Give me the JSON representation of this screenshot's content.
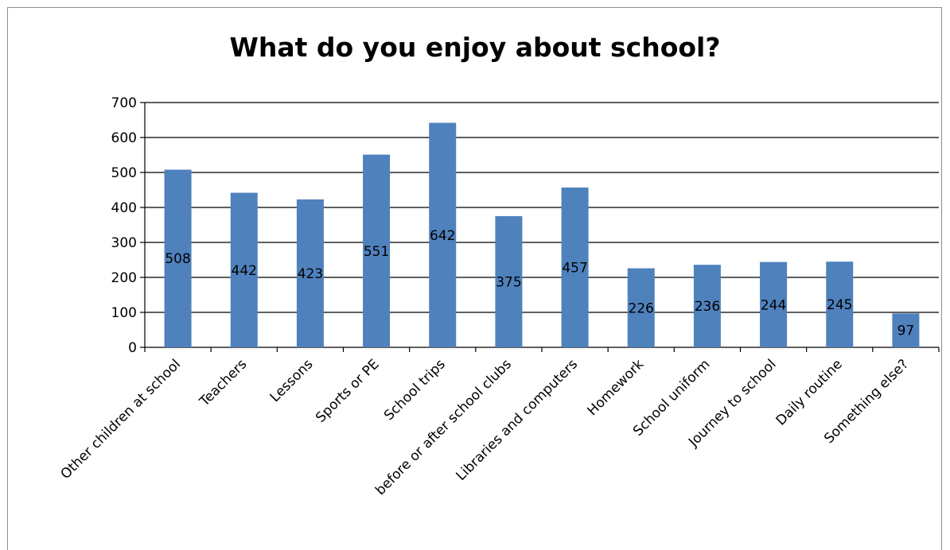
{
  "chart_data": {
    "type": "bar",
    "title": "What do you enjoy about school?",
    "xlabel": "",
    "ylabel": "",
    "categories": [
      "Other children at school",
      "Teachers",
      "Lessons",
      "Sports or PE",
      "School trips",
      "before or after school clubs",
      "Libraries and computers",
      "Homework",
      "School uniform",
      "Journey to school",
      "Daily routine",
      "Something else?"
    ],
    "values": [
      508,
      442,
      423,
      551,
      642,
      375,
      457,
      226,
      236,
      244,
      245,
      97
    ],
    "ylim": [
      0,
      700
    ],
    "yticks": [
      0,
      100,
      200,
      300,
      400,
      500,
      600,
      700
    ],
    "grid": true,
    "legend": "none",
    "colors": {
      "bar": "#4f81bd",
      "grid": "#000000"
    }
  }
}
